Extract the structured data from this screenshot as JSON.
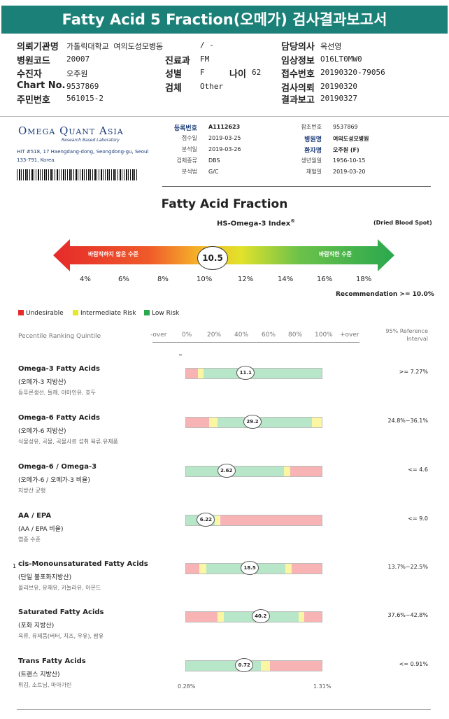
{
  "title": "Fatty Acid 5 Fraction(오메가) 검사결과보고서",
  "patient": {
    "rows": [
      {
        "l1": "의뢰기관명",
        "v1": "가톨릭대학교 여의도성모병동",
        "l2": "",
        "v2": "/ -",
        "l3": "담당의사",
        "v3": "옥선영"
      },
      {
        "l1": "병원코드",
        "v1": "20007",
        "l2": "진료과",
        "v2": "FM",
        "l3": "임상정보",
        "v3": "O16LT0MW0"
      },
      {
        "l1": "수진자",
        "v1": "오주원",
        "l2": "성별",
        "v2": "F",
        "l3": "접수번호",
        "v3": "20190320-79056"
      },
      {
        "l1": "Chart No.",
        "v1": "9537869",
        "l2": "검체",
        "v2": "Other",
        "l3": "검사의뢰",
        "v3": "20190320"
      },
      {
        "l1": "주민번호",
        "v1": "561015-2",
        "l2": "",
        "v2": "",
        "l3": "결과보고",
        "v3": "20190327"
      }
    ],
    "age_label": "나이",
    "age_value": "62"
  },
  "lab": {
    "logo": "Omega Quant Asia",
    "logo_sub": "Research Based Laboratory",
    "address": "HIT #518, 17 Haengdang-dong, Seongdong-gu, Seoul 133-791, Korea.",
    "left": [
      {
        "k": "등록번호",
        "v": "A1112623",
        "bold": true
      },
      {
        "k": "접수일",
        "v": "2019-03-25",
        "bold": false
      },
      {
        "k": "분석일",
        "v": "2019-03-26",
        "bold": false
      },
      {
        "k": "검체종류",
        "v": "DBS",
        "bold": false
      },
      {
        "k": "분석법",
        "v": "G/C",
        "bold": false
      }
    ],
    "right": [
      {
        "k": "참조번호",
        "v": "9537869",
        "bold": false
      },
      {
        "k": "병원명",
        "v": "여의도성모병원",
        "bold": true
      },
      {
        "k": "환자명",
        "v": "오주원 (F)",
        "bold": true
      },
      {
        "k": "생년월일",
        "v": "1956-10-15",
        "bold": false
      },
      {
        "k": "채혈일",
        "v": "2019-03-20",
        "bold": false
      }
    ]
  },
  "fa_title": "Fatty Acid Fraction",
  "hs_title": "HS-Omega-3 Index",
  "hs_sup": "®",
  "dbs": "(Dried Blood Spot)",
  "index": {
    "value": "10.5",
    "left_label": "바람직하지 않은 수준",
    "right_label": "바람직한 수준",
    "ticks": [
      "4%",
      "6%",
      "8%",
      "10%",
      "12%",
      "14%",
      "16%",
      "18%"
    ]
  },
  "recommendation": "Recommendation  >= 10.0%",
  "legend": [
    {
      "label": "Undesirable",
      "color": "#e52a2a"
    },
    {
      "label": "Intermediate Risk",
      "color": "#e6e62a"
    },
    {
      "label": "Low Risk",
      "color": "#2aa84e"
    }
  ],
  "percentile_label": "Pecentile Ranking Quintile",
  "scale_labels": [
    "-over",
    "0%",
    "20%",
    "40%",
    "60%",
    "80%",
    "100%",
    "+over"
  ],
  "reference_label": "95% Reference Interval",
  "rows": [
    {
      "name": "Omega-3 Fatty Acids",
      "ko": "(오메가-3 지방산)",
      "desc": "등푸른생선, 들깨, 아마인유, 호두",
      "value": "11.1",
      "value_num": 11.1,
      "ref": ">= 7.27%",
      "pos": 0.44,
      "segments": [
        [
          "#f8b4b4",
          0,
          0.09
        ],
        [
          "#fbf6a4",
          0.09,
          0.13
        ],
        [
          "#b8e6c8",
          0.13,
          1.0
        ]
      ]
    },
    {
      "name": "Omega-6 Fatty Acids",
      "ko": "(오메가-6 지방산)",
      "desc": "식물성유, 곡물, 곡물사료 섭취 육류.유제품",
      "value": "29.2",
      "value_num": 29.2,
      "ref": "24.8%~36.1%",
      "pos": 0.49,
      "segments": [
        [
          "#f8b4b4",
          0,
          0.17
        ],
        [
          "#fbf6a4",
          0.17,
          0.23
        ],
        [
          "#b8e6c8",
          0.23,
          0.93
        ],
        [
          "#fbf6a4",
          0.93,
          1.0
        ]
      ]
    },
    {
      "name": "Omega-6 / Omega-3",
      "ko": "(오메가-6 / 오메가-3 비율)",
      "desc": "지방산 균형",
      "value": "2.62",
      "value_num": 2.62,
      "ref": "<= 4.6",
      "pos": 0.3,
      "segments": [
        [
          "#b8e6c8",
          0,
          0.72
        ],
        [
          "#fbf6a4",
          0.72,
          0.77
        ],
        [
          "#f8b4b4",
          0.77,
          1.0
        ]
      ]
    },
    {
      "name": "AA / EPA",
      "ko": "(AA / EPA 비율)",
      "desc": "염증 수준",
      "value": "6.22",
      "value_num": 6.22,
      "ref": "<= 9.0",
      "pos": 0.15,
      "segments": [
        [
          "#b8e6c8",
          0,
          0.21
        ],
        [
          "#fbf6a4",
          0.21,
          0.25
        ],
        [
          "#f8b4b4",
          0.25,
          1.0
        ]
      ]
    },
    {
      "name": "cis-Monounsaturated Fatty Acids",
      "ko": "(단일 불포화지방산)",
      "desc": "올리브유, 유채유, 카놀라유, 아몬드",
      "value": "18.5",
      "value_num": 18.5,
      "ref": "13.7%~22.5%",
      "pos": 0.47,
      "segments": [
        [
          "#f8b4b4",
          0,
          0.1
        ],
        [
          "#fbf6a4",
          0.1,
          0.15
        ],
        [
          "#b8e6c8",
          0.15,
          0.73
        ],
        [
          "#fbf6a4",
          0.73,
          0.78
        ],
        [
          "#f8b4b4",
          0.78,
          1.0
        ]
      ]
    },
    {
      "name": "Saturated Fatty Acids",
      "ko": "(포화 지방산)",
      "desc": "육류, 유제품(버터, 치즈, 우유), 팜유",
      "value": "40.2",
      "value_num": 40.2,
      "ref": "37.6%~42.8%",
      "pos": 0.55,
      "segments": [
        [
          "#f8b4b4",
          0,
          0.23
        ],
        [
          "#fbf6a4",
          0.23,
          0.28
        ],
        [
          "#b8e6c8",
          0.28,
          0.83
        ],
        [
          "#fbf6a4",
          0.83,
          0.87
        ],
        [
          "#f8b4b4",
          0.87,
          1.0
        ]
      ]
    },
    {
      "name": "Trans Fatty Acids",
      "ko": "(트랜스 지방산)",
      "desc": "튀김, 소트닝, 마아가린",
      "value": "0.72",
      "value_num": 0.72,
      "ref": "<= 0.91%",
      "pos": 0.43,
      "segments": [
        [
          "#b8e6c8",
          0,
          0.55
        ],
        [
          "#fbf6a4",
          0.55,
          0.62
        ],
        [
          "#f8b4b4",
          0.62,
          1.0
        ]
      ]
    }
  ],
  "axis_min": "0.28%",
  "axis_max": "1.31%",
  "side_num": "1"
}
